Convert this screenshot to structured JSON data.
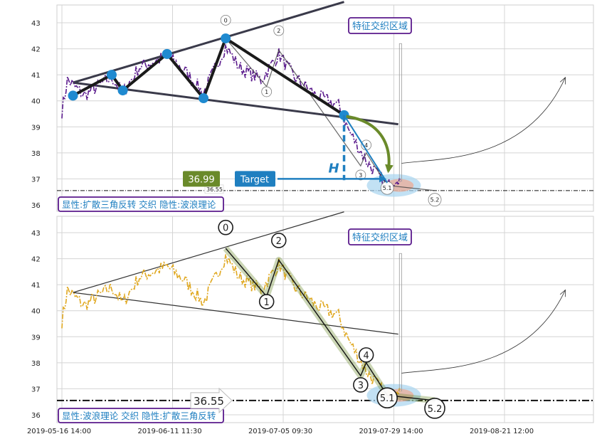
{
  "chart_data": [
    {
      "type": "line",
      "panel": "top",
      "ylim": [
        35.7,
        43.7
      ],
      "yticks": [
        36,
        37,
        38,
        39,
        40,
        41,
        42,
        43
      ],
      "zone_label": "特征交织区域",
      "caption": "显性:扩散三角反转 交织 隐性:波浪理论",
      "price_color": "#5a1a8c",
      "level_line": 36.55,
      "level_label": "36.55",
      "badge_value": "36.99",
      "badge_color": "#6a8a2a",
      "target_label": "Target",
      "target_color": "#1f7fc0",
      "height_label": "H",
      "triangle_pivots": [
        {
          "x": 0.1,
          "y": 40.2
        },
        {
          "x": 0.45,
          "y": 41.0
        },
        {
          "x": 0.55,
          "y": 40.4
        },
        {
          "x": 0.95,
          "y": 41.8
        },
        {
          "x": 1.28,
          "y": 40.1
        },
        {
          "x": 1.48,
          "y": 42.4
        },
        {
          "x": 2.55,
          "y": 39.45
        }
      ],
      "wave_labels": [
        {
          "label": "0",
          "x": 1.48,
          "y": 43.1
        },
        {
          "label": "1",
          "x": 1.85,
          "y": 40.35
        },
        {
          "label": "2",
          "x": 1.96,
          "y": 42.7
        },
        {
          "label": "3",
          "x": 2.7,
          "y": 37.15
        },
        {
          "label": "4",
          "x": 2.75,
          "y": 38.3
        },
        {
          "label": "5.1",
          "x": 2.94,
          "y": 36.65
        },
        {
          "label": "5.2",
          "x": 3.37,
          "y": 36.2
        }
      ]
    },
    {
      "type": "line",
      "panel": "bottom",
      "ylim": [
        35.7,
        43.7
      ],
      "yticks": [
        36,
        37,
        38,
        39,
        40,
        41,
        42,
        43
      ],
      "xticks": [
        "2019-05-16 14:00",
        "2019-06-11 11:30",
        "2019-07-05 09:30",
        "2019-07-29 14:00",
        "2019-08-21 12:00"
      ],
      "zone_label": "特征交织区域",
      "caption": "显性:波浪理论 交织 隐性:扩散三角反转",
      "price_color": "#e0a820",
      "level_line": 36.55,
      "level_label": "36.55",
      "wave_points": [
        {
          "label": "0",
          "x": 1.48,
          "y": 42.4
        },
        {
          "label": "1",
          "x": 1.85,
          "y": 40.55
        },
        {
          "label": "2",
          "x": 1.96,
          "y": 41.95
        },
        {
          "label": "3",
          "x": 2.7,
          "y": 37.5
        },
        {
          "label": "4",
          "x": 2.75,
          "y": 38.0
        },
        {
          "label": "5.1",
          "x": 2.94,
          "y": 36.75
        },
        {
          "label": "5.2",
          "x": 3.37,
          "y": 36.55
        }
      ],
      "wave_labels": [
        {
          "label": "0",
          "x": 1.48,
          "y": 43.2
        },
        {
          "label": "1",
          "x": 1.85,
          "y": 40.35
        },
        {
          "label": "2",
          "x": 1.96,
          "y": 42.7
        },
        {
          "label": "3",
          "x": 2.7,
          "y": 37.15
        },
        {
          "label": "4",
          "x": 2.75,
          "y": 38.3
        },
        {
          "label": "5.1",
          "x": 2.94,
          "y": 36.65
        },
        {
          "label": "5.2",
          "x": 3.37,
          "y": 36.25
        }
      ]
    }
  ]
}
